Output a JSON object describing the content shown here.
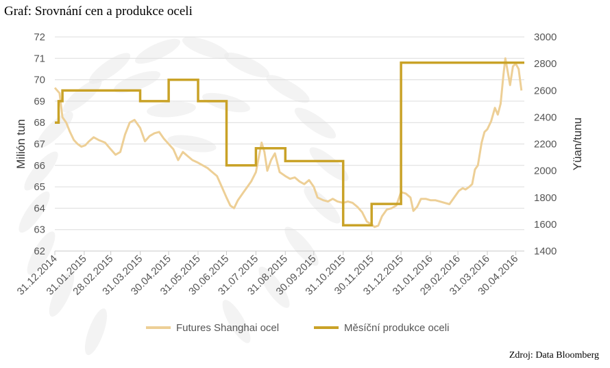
{
  "title": "Graf: Srovnání cen a produkce oceli",
  "source": "Zdroj: Data Bloomberg",
  "chart_data": {
    "type": "line",
    "ylabel_left": "Milión tun",
    "ylabel_right": "Yüan/tunu",
    "ylim_left": [
      62,
      72
    ],
    "ylim_right": [
      1400,
      3000
    ],
    "yticks_left": [
      62,
      63,
      64,
      65,
      66,
      67,
      68,
      69,
      70,
      71,
      72
    ],
    "yticks_right": [
      1400,
      1600,
      1800,
      2000,
      2200,
      2400,
      2600,
      2800,
      3000
    ],
    "xticks": [
      "31.12.2014",
      "31.01.2015",
      "28.02.2015",
      "31.03.2015",
      "30.04.2015",
      "31.05.2015",
      "30.06.2015",
      "31.07.2015",
      "31.08.2015",
      "30.09.2015",
      "31.10.2015",
      "30.11.2015",
      "31.12.2015",
      "31.01.2016",
      "29.02.2016",
      "31.03.2016",
      "30.04.2016"
    ],
    "xlim": [
      "2014-12-31",
      "2016-05-09"
    ],
    "grid": true,
    "legend_position": "bottom",
    "series": [
      {
        "name": "Futures Shanghai ocel",
        "axis": "right",
        "color": "#EDCF96",
        "points": [
          [
            "2014-12-31",
            2620
          ],
          [
            "2015-01-05",
            2580
          ],
          [
            "2015-01-08",
            2400
          ],
          [
            "2015-01-12",
            2360
          ],
          [
            "2015-01-16",
            2290
          ],
          [
            "2015-01-20",
            2230
          ],
          [
            "2015-01-24",
            2200
          ],
          [
            "2015-01-28",
            2180
          ],
          [
            "2015-02-01",
            2190
          ],
          [
            "2015-02-05",
            2220
          ],
          [
            "2015-02-10",
            2250
          ],
          [
            "2015-02-15",
            2230
          ],
          [
            "2015-02-22",
            2210
          ],
          [
            "2015-02-28",
            2160
          ],
          [
            "2015-03-05",
            2120
          ],
          [
            "2015-03-10",
            2140
          ],
          [
            "2015-03-15",
            2270
          ],
          [
            "2015-03-20",
            2360
          ],
          [
            "2015-03-25",
            2380
          ],
          [
            "2015-03-31",
            2320
          ],
          [
            "2015-04-05",
            2220
          ],
          [
            "2015-04-10",
            2260
          ],
          [
            "2015-04-15",
            2280
          ],
          [
            "2015-04-20",
            2290
          ],
          [
            "2015-04-25",
            2240
          ],
          [
            "2015-04-30",
            2200
          ],
          [
            "2015-05-05",
            2160
          ],
          [
            "2015-05-10",
            2080
          ],
          [
            "2015-05-15",
            2140
          ],
          [
            "2015-05-20",
            2110
          ],
          [
            "2015-05-25",
            2080
          ],
          [
            "2015-05-31",
            2060
          ],
          [
            "2015-06-05",
            2040
          ],
          [
            "2015-06-10",
            2020
          ],
          [
            "2015-06-15",
            1990
          ],
          [
            "2015-06-20",
            1960
          ],
          [
            "2015-06-25",
            1880
          ],
          [
            "2015-06-30",
            1800
          ],
          [
            "2015-07-04",
            1740
          ],
          [
            "2015-07-08",
            1720
          ],
          [
            "2015-07-12",
            1780
          ],
          [
            "2015-07-18",
            1840
          ],
          [
            "2015-07-22",
            1880
          ],
          [
            "2015-07-26",
            1920
          ],
          [
            "2015-07-31",
            1990
          ],
          [
            "2015-08-03",
            2100
          ],
          [
            "2015-08-06",
            2210
          ],
          [
            "2015-08-09",
            2140
          ],
          [
            "2015-08-12",
            2000
          ],
          [
            "2015-08-16",
            2080
          ],
          [
            "2015-08-20",
            2130
          ],
          [
            "2015-08-25",
            1990
          ],
          [
            "2015-08-31",
            1960
          ],
          [
            "2015-09-05",
            1940
          ],
          [
            "2015-09-10",
            1950
          ],
          [
            "2015-09-15",
            1920
          ],
          [
            "2015-09-20",
            1900
          ],
          [
            "2015-09-25",
            1930
          ],
          [
            "2015-09-30",
            1880
          ],
          [
            "2015-10-04",
            1800
          ],
          [
            "2015-10-10",
            1780
          ],
          [
            "2015-10-15",
            1770
          ],
          [
            "2015-10-20",
            1790
          ],
          [
            "2015-10-25",
            1770
          ],
          [
            "2015-10-31",
            1760
          ],
          [
            "2015-11-05",
            1770
          ],
          [
            "2015-11-10",
            1760
          ],
          [
            "2015-11-15",
            1730
          ],
          [
            "2015-11-20",
            1690
          ],
          [
            "2015-11-25",
            1620
          ],
          [
            "2015-11-30",
            1600
          ],
          [
            "2015-12-03",
            1580
          ],
          [
            "2015-12-07",
            1590
          ],
          [
            "2015-12-11",
            1660
          ],
          [
            "2015-12-16",
            1710
          ],
          [
            "2015-12-21",
            1720
          ],
          [
            "2015-12-26",
            1740
          ],
          [
            "2015-12-31",
            1840
          ],
          [
            "2016-01-05",
            1830
          ],
          [
            "2016-01-10",
            1800
          ],
          [
            "2016-01-13",
            1700
          ],
          [
            "2016-01-17",
            1730
          ],
          [
            "2016-01-21",
            1790
          ],
          [
            "2016-01-26",
            1790
          ],
          [
            "2016-01-31",
            1780
          ],
          [
            "2016-02-05",
            1780
          ],
          [
            "2016-02-10",
            1770
          ],
          [
            "2016-02-15",
            1760
          ],
          [
            "2016-02-20",
            1750
          ],
          [
            "2016-02-25",
            1800
          ],
          [
            "2016-03-01",
            1850
          ],
          [
            "2016-03-05",
            1870
          ],
          [
            "2016-03-08",
            1860
          ],
          [
            "2016-03-12",
            1880
          ],
          [
            "2016-03-15",
            1900
          ],
          [
            "2016-03-18",
            2010
          ],
          [
            "2016-03-21",
            2040
          ],
          [
            "2016-03-25",
            2210
          ],
          [
            "2016-03-28",
            2290
          ],
          [
            "2016-03-31",
            2310
          ],
          [
            "2016-04-04",
            2370
          ],
          [
            "2016-04-08",
            2470
          ],
          [
            "2016-04-11",
            2420
          ],
          [
            "2016-04-14",
            2500
          ],
          [
            "2016-04-17",
            2720
          ],
          [
            "2016-04-19",
            2840
          ],
          [
            "2016-04-21",
            2760
          ],
          [
            "2016-04-24",
            2640
          ],
          [
            "2016-04-27",
            2780
          ],
          [
            "2016-04-30",
            2800
          ],
          [
            "2016-05-03",
            2760
          ],
          [
            "2016-05-06",
            2600
          ]
        ]
      },
      {
        "name": "Měsíční produkce oceli",
        "axis": "left",
        "color": "#C9A227",
        "step": "after",
        "points": [
          [
            "2014-12-31",
            68.0
          ],
          [
            "2015-01-04",
            69.0
          ],
          [
            "2015-01-08",
            69.5
          ],
          [
            "2015-03-31",
            69.0
          ],
          [
            "2015-04-30",
            70.0
          ],
          [
            "2015-05-31",
            69.0
          ],
          [
            "2015-06-30",
            66.0
          ],
          [
            "2015-07-31",
            66.8
          ],
          [
            "2015-08-31",
            66.2
          ],
          [
            "2015-10-31",
            63.2
          ],
          [
            "2015-11-30",
            64.2
          ],
          [
            "2015-12-31",
            70.8
          ],
          [
            "2016-05-09",
            70.8
          ]
        ]
      }
    ]
  }
}
